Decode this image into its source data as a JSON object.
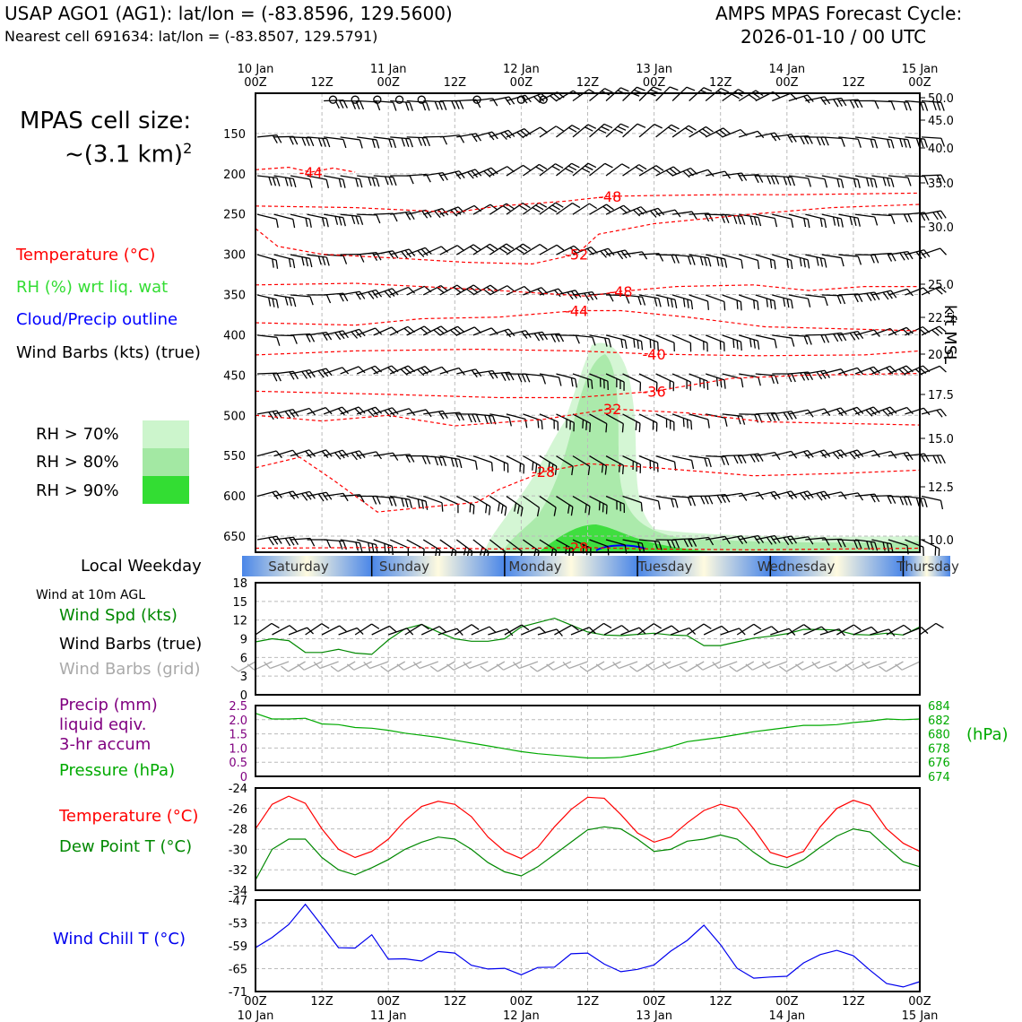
{
  "header": {
    "station": "USAP AGO1 (AG1): lat/lon = (-83.8596, 129.5600)",
    "nearest": "Nearest cell 691634: lat/lon = (-83.8507, 129.5791)",
    "cycle_line1": "AMPS MPAS Forecast Cycle:",
    "cycle_line2": "2026-01-10 / 00 UTC"
  },
  "cell_size": {
    "line1": "MPAS cell size:",
    "line2": "~(3.1 km)",
    "sup": "2"
  },
  "legend": {
    "temperature": "Temperature (°C)",
    "rh": "RH (%) wrt liq. wat",
    "cloud": "Cloud/Precip outline",
    "barbs": "Wind Barbs (kts) (true)",
    "rh70": "RH > 70%",
    "rh80": "RH > 80%",
    "rh90": "RH > 90%"
  },
  "colors": {
    "temp": "#ff0000",
    "rh": "#33dd33",
    "cloud": "#0000ff",
    "dew": "#008800",
    "pressure": "#00aa00",
    "precip": "#800080",
    "chill": "#0000ee",
    "grid": "#bbbbbb",
    "rh70": "#ccf5cc",
    "rh80": "#a3e8a3",
    "rh90": "#33dd33",
    "gray_barb": "#aaaaaa"
  },
  "chart_data": [
    {
      "type": "heatmap",
      "name": "profile",
      "x_times": [
        "00Z",
        "12Z",
        "00Z",
        "12Z",
        "00Z",
        "12Z",
        "00Z",
        "12Z",
        "00Z",
        "12Z",
        "00Z"
      ],
      "x_dates": [
        "10 Jan",
        "",
        "11 Jan",
        "",
        "12 Jan",
        "",
        "13 Jan",
        "",
        "14 Jan",
        "",
        "15 Jan"
      ],
      "x_range_hours": [
        0,
        120
      ],
      "ylabel_right": "kft MSL",
      "y_ticks_hpa": [
        150,
        200,
        250,
        300,
        350,
        400,
        450,
        500,
        550,
        600,
        650
      ],
      "y_ticks_kft": [
        "50.0",
        "45.0",
        "40.0",
        "35.0",
        "30.0",
        "25.0",
        "22.5",
        "20.0",
        "17.5",
        "15.0",
        "12.5",
        "10.0"
      ],
      "y_range_hpa": [
        100,
        670
      ],
      "temp_contours": [
        {
          "label": "-44",
          "points": [
            [
              0,
              195
            ],
            [
              6,
              192
            ],
            [
              10,
              198
            ],
            [
              14,
              193
            ],
            [
              18,
              198
            ]
          ]
        },
        {
          "label": "-48",
          "points": [
            [
              0,
              240
            ],
            [
              18,
              242
            ],
            [
              30,
              246
            ],
            [
              36,
              248
            ],
            [
              44,
              240
            ],
            [
              56,
              234
            ],
            [
              64,
              228
            ],
            [
              72,
              227
            ],
            [
              84,
              226
            ],
            [
              96,
              226
            ],
            [
              108,
              225
            ],
            [
              120,
              224
            ]
          ]
        },
        {
          "label": "-52",
          "points": [
            [
              0,
              268
            ],
            [
              4,
              290
            ],
            [
              12,
              300
            ],
            [
              26,
              305
            ],
            [
              38,
              310
            ],
            [
              50,
              312
            ],
            [
              58,
              300
            ],
            [
              62,
              275
            ],
            [
              72,
              262
            ],
            [
              90,
              250
            ],
            [
              104,
              242
            ],
            [
              120,
              238
            ]
          ]
        },
        {
          "label": "-48",
          "points": [
            [
              0,
              338
            ],
            [
              18,
              336
            ],
            [
              30,
              340
            ],
            [
              44,
              345
            ],
            [
              60,
              352
            ],
            [
              66,
              346
            ],
            [
              76,
              340
            ],
            [
              90,
              338
            ],
            [
              100,
              345
            ],
            [
              110,
              340
            ],
            [
              120,
              340
            ]
          ]
        },
        {
          "label": "-44",
          "points": [
            [
              0,
              385
            ],
            [
              18,
              388
            ],
            [
              30,
              380
            ],
            [
              44,
              378
            ],
            [
              58,
              370
            ],
            [
              66,
              370
            ],
            [
              78,
              378
            ],
            [
              92,
              390
            ],
            [
              120,
              395
            ]
          ]
        },
        {
          "label": "-40",
          "points": [
            [
              0,
              425
            ],
            [
              18,
              420
            ],
            [
              40,
              418
            ],
            [
              58,
              420
            ],
            [
              72,
              424
            ],
            [
              90,
              426
            ],
            [
              110,
              425
            ],
            [
              120,
              420
            ]
          ]
        },
        {
          "label": "-36",
          "points": [
            [
              0,
              470
            ],
            [
              24,
              474
            ],
            [
              44,
              478
            ],
            [
              58,
              478
            ],
            [
              72,
              470
            ],
            [
              86,
              454
            ],
            [
              100,
              450
            ],
            [
              120,
              448
            ]
          ]
        },
        {
          "label": "-32",
          "points": [
            [
              0,
              500
            ],
            [
              12,
              507
            ],
            [
              24,
              500
            ],
            [
              36,
              513
            ],
            [
              52,
              505
            ],
            [
              64,
              492
            ],
            [
              78,
              497
            ],
            [
              92,
              508
            ],
            [
              106,
              510
            ],
            [
              120,
              512
            ]
          ]
        },
        {
          "label": "-28",
          "points": [
            [
              0,
              565
            ],
            [
              8,
              552
            ],
            [
              14,
              580
            ],
            [
              22,
              620
            ],
            [
              40,
              608
            ],
            [
              44,
              592
            ],
            [
              52,
              570
            ],
            [
              60,
              560
            ],
            [
              72,
              565
            ],
            [
              90,
              575
            ],
            [
              106,
              572
            ],
            [
              120,
              568
            ]
          ]
        },
        {
          "label": "-28",
          "points": [
            [
              0,
              665
            ],
            [
              26,
              664
            ],
            [
              44,
              666
            ],
            [
              58,
              664
            ],
            [
              72,
              666
            ],
            [
              90,
              667
            ],
            [
              120,
              665
            ]
          ]
        }
      ],
      "barbs_section": "wind barbs plotted at each 3-hourly time and pressure level",
      "rh_region_levels": [
        "RH > 70%",
        "RH > 80%",
        "RH > 90%"
      ]
    },
    {
      "type": "line",
      "name": "wind",
      "title": "Wind at 10m AGL",
      "series_labels": {
        "speed": "Wind Spd (kts)",
        "barbs_true": "Wind Barbs (true)",
        "barbs_grid": "Wind Barbs (grid)"
      },
      "ylim": [
        0,
        18
      ],
      "y_ticks": [
        "0",
        "3",
        "6",
        "9",
        "12",
        "15",
        "18"
      ],
      "x_hours": [
        0,
        3,
        6,
        9,
        12,
        15,
        18,
        21,
        24,
        27,
        30,
        33,
        36,
        39,
        42,
        45,
        48,
        51,
        54,
        57,
        60,
        63,
        66,
        69,
        72,
        75,
        78,
        81,
        84,
        87,
        90,
        93,
        96,
        99,
        102,
        105,
        108,
        111,
        114,
        117,
        120
      ],
      "values": [
        8.5,
        9.0,
        8.7,
        6.8,
        6.8,
        7.3,
        6.7,
        6.5,
        8.8,
        10.6,
        11.3,
        10.1,
        9.0,
        8.6,
        8.6,
        9.0,
        10.9,
        11.6,
        12.3,
        11.2,
        10.1,
        9.6,
        9.5,
        9.7,
        9.9,
        9.6,
        9.5,
        7.9,
        7.9,
        8.5,
        9.1,
        9.4,
        9.8,
        10.5,
        10.5,
        10.4,
        9.7,
        9.6,
        9.9,
        9.6,
        10.9
      ]
    },
    {
      "type": "line",
      "name": "precip-pressure",
      "series_labels": {
        "precip": "Precip (mm)",
        "precip2": "liquid eqiv.",
        "precip3": "3-hr accum",
        "pressure": "Pressure (hPa)"
      },
      "left_ticks": [
        "0",
        "0.5",
        "1.0",
        "1.5",
        "2.0",
        "2.5"
      ],
      "right_ticks": [
        "674",
        "676",
        "678",
        "680",
        "682",
        "684"
      ],
      "right_unit": "(hPa)",
      "ylim_left": [
        0,
        2.5
      ],
      "ylim_right": [
        674,
        684
      ],
      "precip_values": [
        0,
        0,
        0,
        0,
        0,
        0,
        0,
        0,
        0,
        0,
        0,
        0,
        0,
        0,
        0,
        0,
        0,
        0,
        0,
        0,
        0,
        0,
        0,
        0,
        0,
        0,
        0,
        0,
        0,
        0,
        0,
        0,
        0,
        0,
        0,
        0,
        0,
        0,
        0,
        0,
        0
      ],
      "x_hours": [
        0,
        3,
        6,
        9,
        12,
        15,
        18,
        21,
        24,
        27,
        30,
        33,
        36,
        39,
        42,
        45,
        48,
        51,
        54,
        57,
        60,
        63,
        66,
        69,
        72,
        75,
        78,
        81,
        84,
        87,
        90,
        93,
        96,
        99,
        102,
        105,
        108,
        111,
        114,
        117,
        120
      ],
      "pressure": [
        682.9,
        682.1,
        682.1,
        682.2,
        681.4,
        681.3,
        680.9,
        680.8,
        680.5,
        680.1,
        679.8,
        679.5,
        679.1,
        678.7,
        678.3,
        677.9,
        677.5,
        677.2,
        677.0,
        676.8,
        676.6,
        676.6,
        676.7,
        677.1,
        677.6,
        678.2,
        678.9,
        679.2,
        679.5,
        679.9,
        680.3,
        680.6,
        680.9,
        681.2,
        681.2,
        681.3,
        681.6,
        681.8,
        682.1,
        682.0,
        682.1
      ]
    },
    {
      "type": "line",
      "name": "temperature",
      "series_labels": {
        "temp": "Temperature (°C)",
        "dew": "Dew Point T (°C)"
      },
      "ylim": [
        -34,
        -24
      ],
      "y_ticks": [
        "-34",
        "-32",
        "-30",
        "-28",
        "-26",
        "-24"
      ],
      "x_hours": [
        0,
        3,
        6,
        9,
        12,
        15,
        18,
        21,
        24,
        27,
        30,
        33,
        36,
        39,
        42,
        45,
        48,
        51,
        54,
        57,
        60,
        63,
        66,
        69,
        72,
        75,
        78,
        81,
        84,
        87,
        90,
        93,
        96,
        99,
        102,
        105,
        108,
        111,
        114,
        117,
        120
      ],
      "temp": [
        -28.0,
        -25.6,
        -24.8,
        -25.5,
        -28.0,
        -30.0,
        -30.8,
        -30.2,
        -29.0,
        -27.2,
        -25.8,
        -25.3,
        -25.6,
        -26.8,
        -28.8,
        -30.2,
        -30.9,
        -29.8,
        -27.8,
        -26.1,
        -24.9,
        -25.0,
        -26.6,
        -28.4,
        -29.3,
        -28.8,
        -27.4,
        -26.2,
        -25.6,
        -26.0,
        -28.0,
        -30.3,
        -30.8,
        -30.2,
        -27.8,
        -26.0,
        -25.2,
        -25.7,
        -28.0,
        -29.4,
        -30.2
      ],
      "dew": [
        -33.0,
        -30.0,
        -29.0,
        -29.0,
        -30.8,
        -32.0,
        -32.5,
        -31.8,
        -31.0,
        -30.0,
        -29.3,
        -28.8,
        -29.0,
        -30.0,
        -31.3,
        -32.2,
        -32.6,
        -31.7,
        -30.5,
        -29.3,
        -28.1,
        -27.8,
        -28.0,
        -29.0,
        -30.2,
        -30.0,
        -29.2,
        -29.0,
        -28.6,
        -29.0,
        -30.3,
        -31.4,
        -31.8,
        -31.0,
        -29.8,
        -28.7,
        -28.0,
        -28.3,
        -29.8,
        -31.2,
        -31.7
      ]
    },
    {
      "type": "line",
      "name": "windchill",
      "series_label": "Wind Chill T (°C)",
      "ylim": [
        -71,
        -47
      ],
      "y_ticks": [
        "-71",
        "-65",
        "-59",
        "-53",
        "-47"
      ],
      "x_hours": [
        0,
        3,
        6,
        9,
        12,
        15,
        18,
        21,
        24,
        27,
        30,
        33,
        36,
        39,
        42,
        45,
        48,
        51,
        54,
        57,
        60,
        63,
        66,
        69,
        72,
        75,
        78,
        81,
        84,
        87,
        90,
        93,
        96,
        99,
        102,
        105,
        108,
        111,
        114,
        117,
        120
      ],
      "values": [
        -59.5,
        -56.8,
        -53.4,
        -48.1,
        -53.7,
        -59.5,
        -59.6,
        -56.1,
        -62.5,
        -62.4,
        -63.0,
        -60.5,
        -60.9,
        -64.1,
        -65.1,
        -64.9,
        -66.6,
        -64.7,
        -64.6,
        -61.1,
        -60.9,
        -63.8,
        -65.8,
        -65.2,
        -64.0,
        -60.4,
        -57.6,
        -53.6,
        -58.7,
        -64.9,
        -67.5,
        -67.2,
        -67.0,
        -63.5,
        -61.3,
        -60.2,
        -61.6,
        -65.4,
        -68.9,
        -69.8,
        -68.4
      ]
    }
  ],
  "weekday": {
    "title": "Local Weekday",
    "days": [
      "Saturday",
      "Sunday",
      "Monday",
      "Tuesday",
      "Wednesday",
      "Thursday"
    ]
  },
  "wind_title": "Wind at 10m AGL"
}
